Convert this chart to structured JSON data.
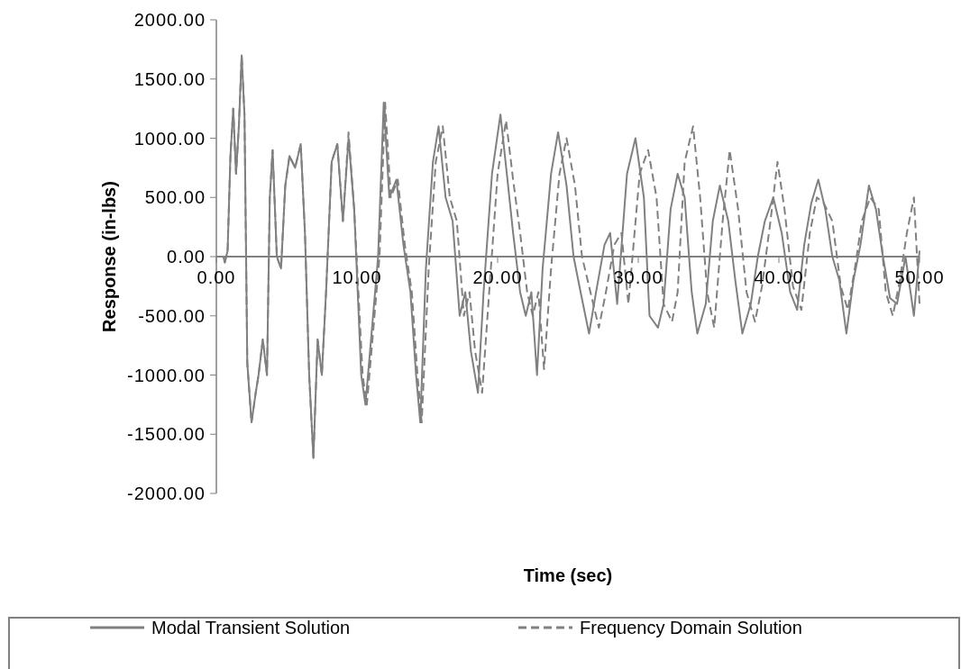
{
  "chart_data": {
    "type": "line",
    "xlabel": "Time  (sec)",
    "ylabel": "Response  (in-lbs)",
    "xlim": [
      0,
      50
    ],
    "xticks": [
      {
        "value": 0,
        "label": "0.00"
      },
      {
        "value": 10,
        "label": "10.00"
      },
      {
        "value": 20,
        "label": "20.00"
      },
      {
        "value": 30,
        "label": "30.00"
      },
      {
        "value": 40,
        "label": "40.00"
      },
      {
        "value": 50,
        "label": "50.00"
      }
    ],
    "ylim": [
      -2000,
      2000
    ],
    "yticks": [
      {
        "value": -2000,
        "label": "-2000.00"
      },
      {
        "value": -1500,
        "label": "-1500.00"
      },
      {
        "value": -1000,
        "label": "-1000.00"
      },
      {
        "value": -500,
        "label": "-500.00"
      },
      {
        "value": 0,
        "label": "0.00"
      },
      {
        "value": 500,
        "label": "500.00"
      },
      {
        "value": 1000,
        "label": "1000.00"
      },
      {
        "value": 1500,
        "label": "1500.00"
      },
      {
        "value": 2000,
        "label": "2000.00"
      }
    ],
    "grid": false,
    "legend": "bottom",
    "marker": "none",
    "series": [
      {
        "name": "Modal Transient Solution",
        "color": "#808080",
        "line_style": "solid",
        "x": [
          0,
          0.5,
          0.6,
          0.8,
          1.0,
          1.2,
          1.4,
          1.6,
          1.8,
          2.0,
          2.2,
          2.5,
          2.8,
          3.0,
          3.3,
          3.6,
          3.8,
          4.0,
          4.3,
          4.6,
          4.9,
          5.2,
          5.6,
          6.0,
          6.3,
          6.6,
          6.9,
          7.2,
          7.5,
          7.8,
          8.2,
          8.6,
          9.0,
          9.4,
          9.8,
          10.3,
          10.6,
          11.0,
          11.5,
          11.9,
          12.3,
          12.8,
          13.3,
          13.8,
          14.2,
          14.5,
          14.9,
          15.4,
          15.8,
          16.3,
          16.8,
          17.3,
          17.7,
          18.1,
          18.6,
          19.0,
          19.6,
          20.2,
          20.7,
          21.1,
          21.6,
          22.0,
          22.4,
          22.8,
          23.2,
          23.8,
          24.3,
          24.9,
          25.4,
          25.9,
          26.5,
          27.0,
          27.6,
          28.0,
          28.5,
          29.2,
          29.8,
          30.4,
          30.8,
          31.4,
          31.8,
          32.3,
          32.8,
          33.3,
          33.8,
          34.2,
          34.8,
          35.3,
          35.8,
          36.4,
          36.9,
          37.4,
          38.0,
          38.5,
          39.0,
          39.6,
          40.2,
          40.8,
          41.3,
          41.8,
          42.3,
          42.8,
          43.3,
          43.8,
          44.3,
          44.8,
          45.3,
          45.8,
          46.4,
          46.9,
          47.4,
          47.9,
          48.4,
          49.0,
          49.6,
          50.0
        ],
        "values": [
          0,
          0,
          -50,
          50,
          850,
          1250,
          700,
          1100,
          1700,
          1200,
          -900,
          -1400,
          -1150,
          -1000,
          -700,
          -1000,
          500,
          900,
          0,
          -100,
          600,
          850,
          750,
          950,
          200,
          -1000,
          -1700,
          -700,
          -1000,
          -300,
          800,
          950,
          300,
          1000,
          400,
          -1000,
          -1250,
          -700,
          0,
          1300,
          500,
          650,
          100,
          -300,
          -1000,
          -1400,
          -100,
          800,
          1100,
          500,
          300,
          -500,
          -300,
          -800,
          -1150,
          -300,
          700,
          1200,
          650,
          200,
          -300,
          -500,
          -300,
          -1000,
          -100,
          700,
          1050,
          600,
          0,
          -300,
          -650,
          -300,
          100,
          200,
          -400,
          700,
          1000,
          500,
          -500,
          -600,
          -400,
          400,
          700,
          500,
          -300,
          -650,
          -400,
          300,
          600,
          300,
          -200,
          -650,
          -400,
          0,
          300,
          500,
          200,
          -300,
          -450,
          100,
          450,
          650,
          400,
          0,
          -200,
          -650,
          -200,
          100,
          600,
          400,
          0,
          -350,
          -400,
          0,
          -500,
          50
        ]
      },
      {
        "name": "Frequency Domain Solution",
        "color": "#808080",
        "line_style": "dashed",
        "x": [
          0,
          0.5,
          0.6,
          0.8,
          1.0,
          1.2,
          1.4,
          1.6,
          1.8,
          2.0,
          2.2,
          2.5,
          2.8,
          3.0,
          3.3,
          3.6,
          3.8,
          4.0,
          4.3,
          4.6,
          4.9,
          5.2,
          5.6,
          6.0,
          6.3,
          6.6,
          6.9,
          7.2,
          7.5,
          7.8,
          8.2,
          8.6,
          9.0,
          9.4,
          9.8,
          10.4,
          10.7,
          11.1,
          11.6,
          12.0,
          12.4,
          12.9,
          13.4,
          13.9,
          14.3,
          14.6,
          15.1,
          15.6,
          16.1,
          16.6,
          17.1,
          17.6,
          18.0,
          18.4,
          18.9,
          19.4,
          20.0,
          20.6,
          21.1,
          21.6,
          22.1,
          22.5,
          22.9,
          23.3,
          23.8,
          24.4,
          24.9,
          25.5,
          26.0,
          26.6,
          27.2,
          27.7,
          28.3,
          28.8,
          29.3,
          30.1,
          30.7,
          31.3,
          31.8,
          32.4,
          32.8,
          33.3,
          33.9,
          34.4,
          34.9,
          35.4,
          36.0,
          36.5,
          37.1,
          37.7,
          38.3,
          38.8,
          39.4,
          39.9,
          40.4,
          41.0,
          41.6,
          42.2,
          42.7,
          43.2,
          43.8,
          44.4,
          44.9,
          45.4,
          45.9,
          46.5,
          47.1,
          47.6,
          48.1,
          48.6,
          49.1,
          49.6,
          50.0
        ],
        "values": [
          0,
          0,
          -50,
          50,
          850,
          1250,
          700,
          1100,
          1700,
          1200,
          -900,
          -1400,
          -1150,
          -1000,
          -700,
          -1000,
          500,
          900,
          0,
          -100,
          600,
          850,
          750,
          950,
          200,
          -1000,
          -1700,
          -700,
          -1000,
          -300,
          800,
          950,
          300,
          1050,
          400,
          -1000,
          -1250,
          -700,
          0,
          1300,
          500,
          650,
          100,
          -300,
          -1000,
          -1400,
          -100,
          800,
          1100,
          500,
          300,
          -500,
          -300,
          -800,
          -1150,
          -300,
          700,
          1150,
          650,
          200,
          -300,
          -500,
          -300,
          -950,
          -100,
          700,
          1000,
          600,
          0,
          -300,
          -600,
          -300,
          100,
          200,
          -400,
          700,
          900,
          500,
          -400,
          -550,
          -300,
          800,
          1100,
          500,
          -300,
          -600,
          300,
          900,
          400,
          -300,
          -550,
          -250,
          300,
          800,
          400,
          -250,
          -450,
          200,
          500,
          450,
          300,
          -250,
          -450,
          -100,
          300,
          500,
          400,
          -300,
          -500,
          -200,
          200,
          500,
          -400
        ]
      }
    ]
  }
}
